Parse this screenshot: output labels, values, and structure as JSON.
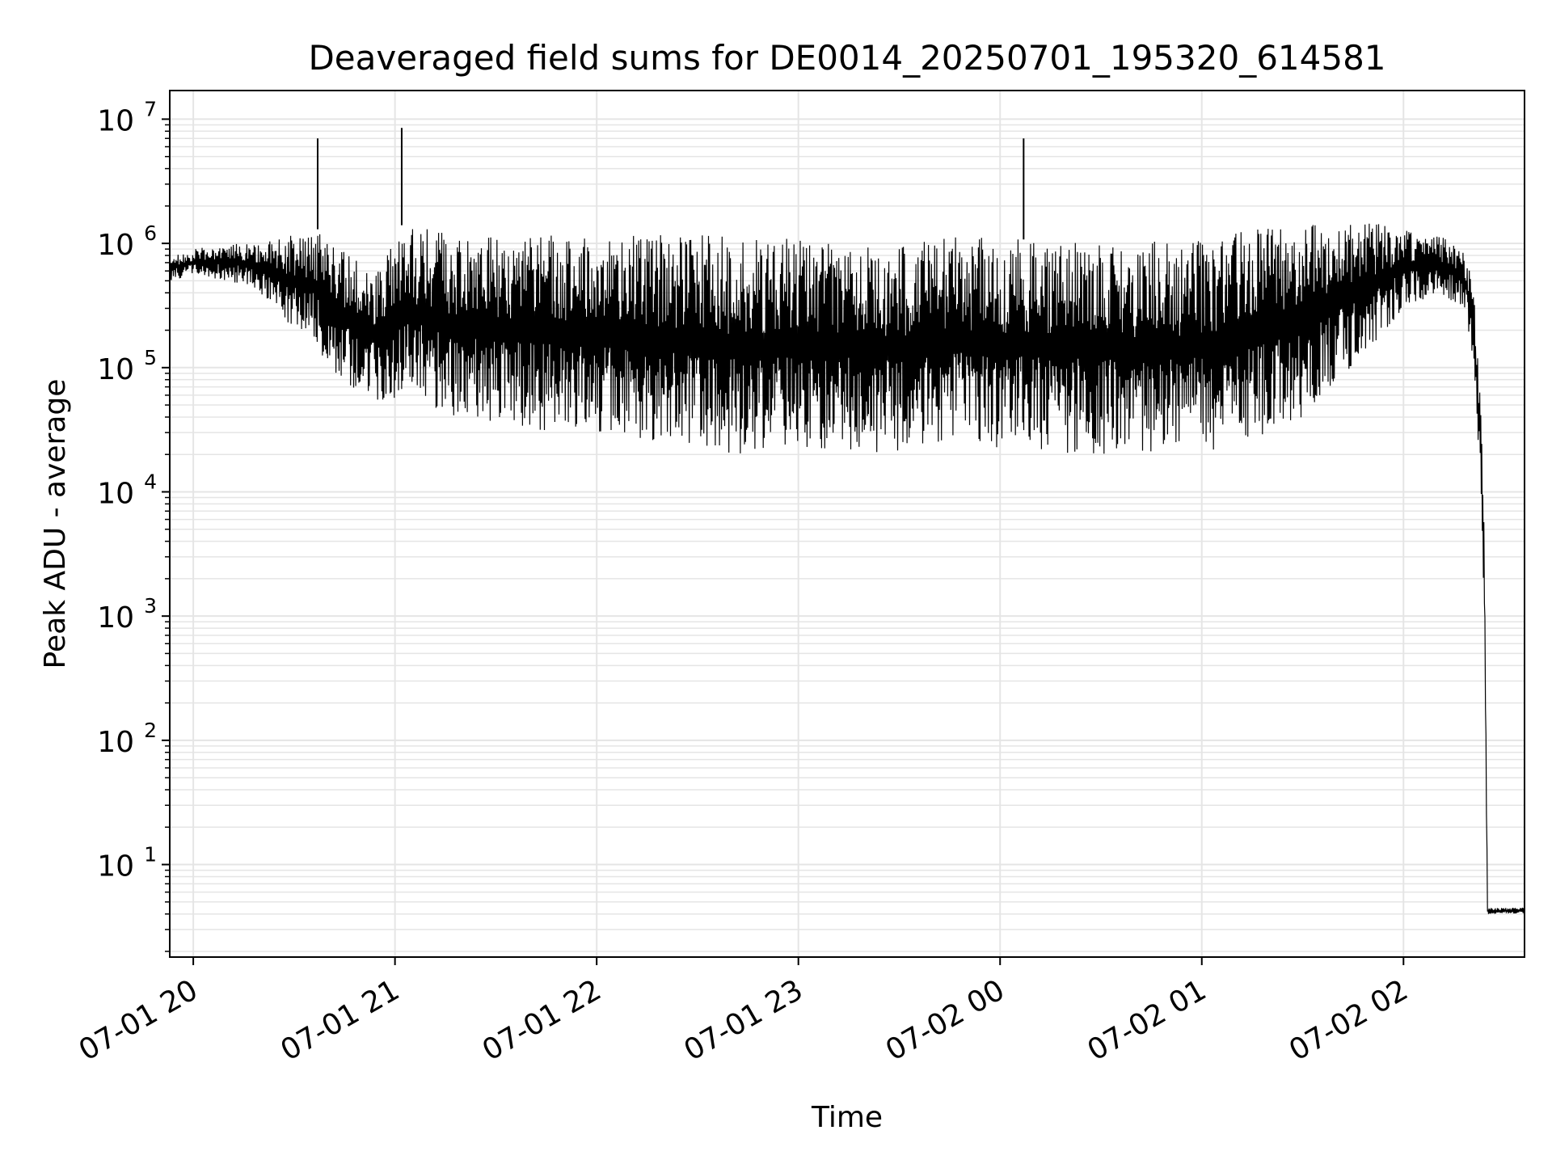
{
  "chart_data": {
    "type": "line",
    "title": "Deaveraged field sums for DE0014_20250701_195320_614581",
    "xlabel": "Time",
    "ylabel": "Peak ADU - average",
    "yscale": "log",
    "ylim": [
      1.8,
      17000000
    ],
    "xlim": [
      "2025-07-01 19:53",
      "2025-07-02 02:36"
    ],
    "grid": {
      "major": true,
      "minor": true
    },
    "line_color": "#000000",
    "grid_color": "#e5e5e5",
    "x_ticks": [
      {
        "t": "2025-07-01 20:00",
        "label": "07-01 20"
      },
      {
        "t": "2025-07-01 21:00",
        "label": "07-01 21"
      },
      {
        "t": "2025-07-01 22:00",
        "label": "07-01 22"
      },
      {
        "t": "2025-07-01 23:00",
        "label": "07-01 23"
      },
      {
        "t": "2025-07-02 00:00",
        "label": "07-02 00"
      },
      {
        "t": "2025-07-02 01:00",
        "label": "07-02 01"
      },
      {
        "t": "2025-07-02 02:00",
        "label": "07-02 02"
      }
    ],
    "y_ticks": [
      {
        "value": 10,
        "base": "10",
        "exp": "1"
      },
      {
        "value": 100,
        "base": "10",
        "exp": "2"
      },
      {
        "value": 1000,
        "base": "10",
        "exp": "3"
      },
      {
        "value": 10000,
        "base": "10",
        "exp": "4"
      },
      {
        "value": 100000,
        "base": "10",
        "exp": "5"
      },
      {
        "value": 1000000,
        "base": "10",
        "exp": "6"
      },
      {
        "value": 10000000,
        "base": "10",
        "exp": "7"
      }
    ],
    "series": [
      {
        "x": [
          "2025-07-01 19:53",
          "2025-07-01 20:00",
          "2025-07-01 20:10",
          "2025-07-01 20:17",
          "2025-07-01 20:25",
          "2025-07-01 20:30",
          "2025-07-01 20:37",
          "2025-07-01 20:40",
          "2025-07-01 20:47",
          "2025-07-01 20:55",
          "2025-07-01 21:02",
          "2025-07-01 21:10",
          "2025-07-01 21:17",
          "2025-07-01 21:24",
          "2025-07-01 21:30",
          "2025-07-01 21:40",
          "2025-07-01 21:50",
          "2025-07-01 22:00",
          "2025-07-01 22:20",
          "2025-07-01 22:35",
          "2025-07-01 22:40",
          "2025-07-01 23:00",
          "2025-07-01 23:35",
          "2025-07-01 23:40",
          "2025-07-02 00:00",
          "2025-07-02 00:30",
          "2025-07-02 01:00",
          "2025-07-02 01:15",
          "2025-07-02 01:30",
          "2025-07-02 01:45",
          "2025-07-02 02:00",
          "2025-07-02 02:10",
          "2025-07-02 02:18",
          "2025-07-02 02:21",
          "2025-07-02 02:23",
          "2025-07-02 02:24",
          "2025-07-02 02:25",
          "2025-07-02 02:36"
        ],
        "y_low": [
          500000,
          550000,
          500000,
          450000,
          300000,
          200000,
          150000,
          100000,
          70000,
          55000,
          55000,
          50000,
          40000,
          40000,
          35000,
          30000,
          30000,
          28000,
          25000,
          22000,
          20000,
          22000,
          20000,
          25000,
          22000,
          20000,
          20000,
          25000,
          40000,
          100000,
          300000,
          400000,
          300000,
          100000,
          10000,
          1000,
          4,
          4
        ],
        "y_high": [
          800000,
          900000,
          1000000,
          1000000,
          1100000,
          1200000,
          1300000,
          1000000,
          800000,
          600000,
          1400000,
          1300000,
          1200000,
          1200000,
          1200000,
          1200000,
          1200000,
          1200000,
          1200000,
          1200000,
          1100000,
          1100000,
          1000000,
          1200000,
          1100000,
          1000000,
          1100000,
          1300000,
          1400000,
          1500000,
          1400000,
          1200000,
          900000,
          500000,
          50000,
          5000,
          4.5,
          4.5
        ]
      }
    ],
    "spikes": [
      {
        "x": "2025-07-01 20:37",
        "y": 7000000
      },
      {
        "x": "2025-07-01 21:02",
        "y": 8500000
      },
      {
        "x": "2025-07-02 00:07",
        "y": 7000000
      }
    ]
  }
}
